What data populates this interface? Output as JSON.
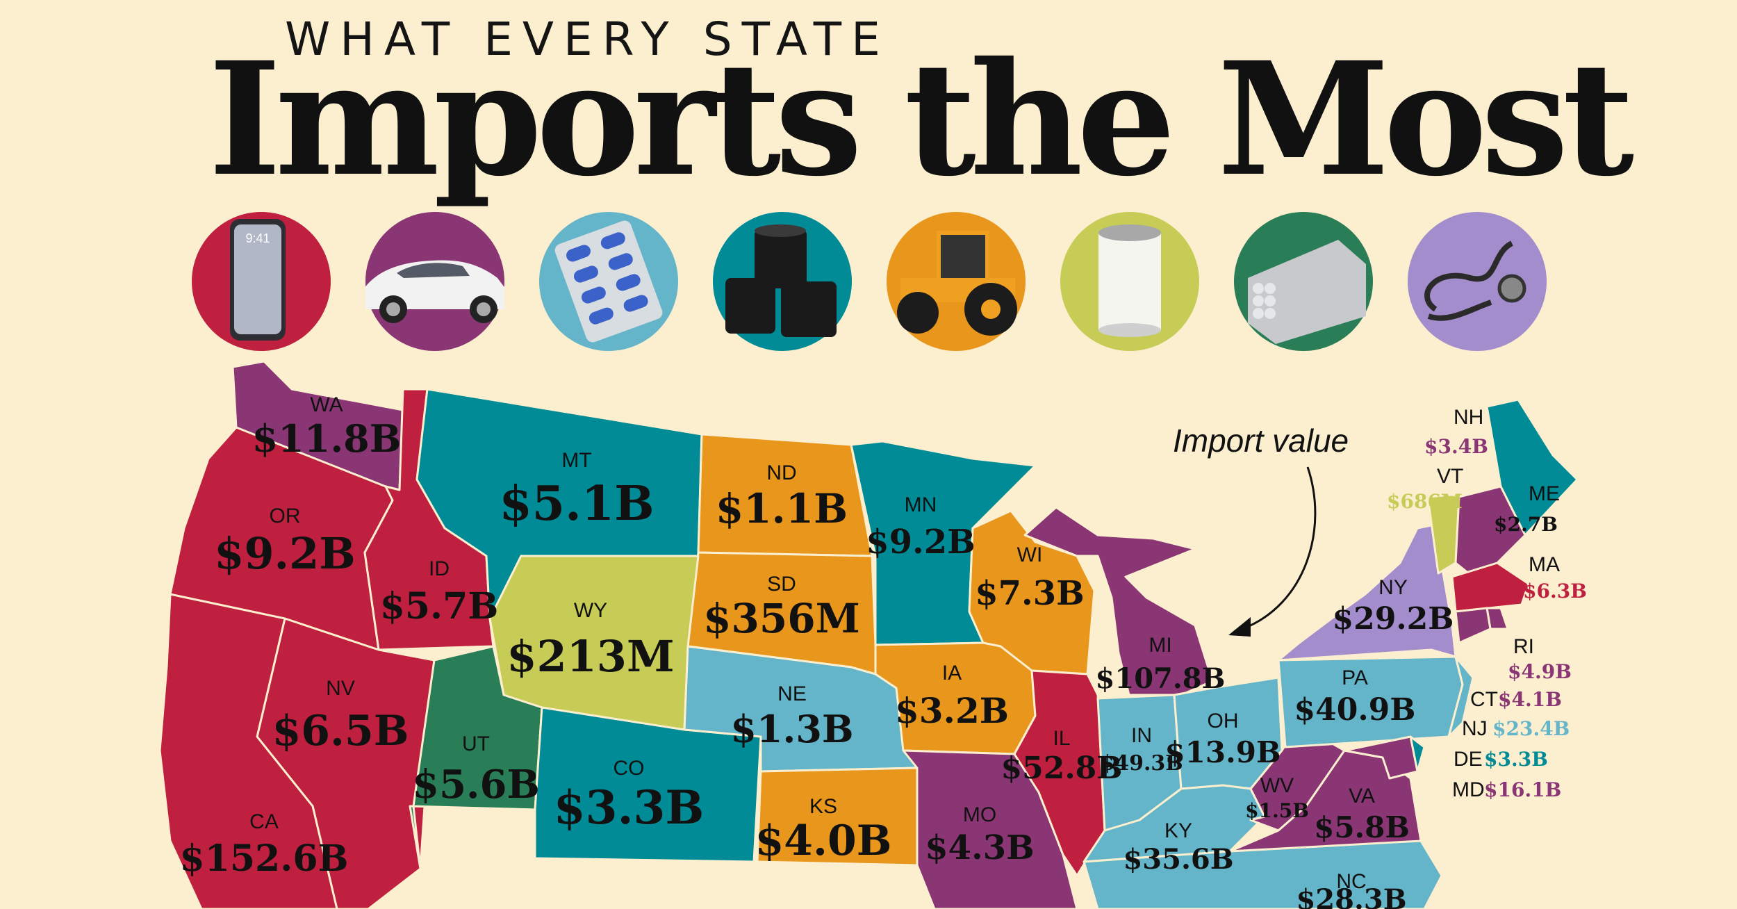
{
  "header": {
    "kicker": "WHAT EVERY STATE",
    "title": "Imports the Most"
  },
  "legend_icons": [
    {
      "name": "smartphone-icon",
      "color": "#c0203f"
    },
    {
      "name": "car-icon",
      "color": "#8a3675"
    },
    {
      "name": "pills-icon",
      "color": "#64b5c9"
    },
    {
      "name": "oil-barrels-icon",
      "color": "#008b96"
    },
    {
      "name": "tractor-icon",
      "color": "#e8961c"
    },
    {
      "name": "can-icon",
      "color": "#c6cc56"
    },
    {
      "name": "metal-bars-icon",
      "color": "#2a7e57"
    },
    {
      "name": "stethoscope-icon",
      "color": "#a48dcc"
    }
  ],
  "colors": {
    "red": "#c0203f",
    "purple": "#8a3675",
    "lightblue": "#64b5c9",
    "teal": "#008b96",
    "orange": "#e8961c",
    "yellowgreen": "#c6cc56",
    "green": "#2a7e57",
    "lavender": "#a48dcc"
  },
  "annotation": "Import value",
  "states": {
    "WA": {
      "abbr": "WA",
      "value": "$11.8B",
      "color": "#8a3675"
    },
    "OR": {
      "abbr": "OR",
      "value": "$9.2B",
      "color": "#c0203f"
    },
    "ID": {
      "abbr": "ID",
      "value": "$5.7B",
      "color": "#c0203f"
    },
    "MT": {
      "abbr": "MT",
      "value": "$5.1B",
      "color": "#008b96"
    },
    "ND": {
      "abbr": "ND",
      "value": "$1.1B",
      "color": "#e8961c"
    },
    "MN": {
      "abbr": "MN",
      "value": "$9.2B",
      "color": "#008b96"
    },
    "WI": {
      "abbr": "WI",
      "value": "$7.3B",
      "color": "#e8961c"
    },
    "SD": {
      "abbr": "SD",
      "value": "$356M",
      "color": "#e8961c"
    },
    "WY": {
      "abbr": "WY",
      "value": "$213M",
      "color": "#c6cc56"
    },
    "NV": {
      "abbr": "NV",
      "value": "$6.5B",
      "color": "#c0203f"
    },
    "UT": {
      "abbr": "UT",
      "value": "$5.6B",
      "color": "#2a7e57"
    },
    "CO": {
      "abbr": "CO",
      "value": "$3.3B",
      "color": "#008b96"
    },
    "NE": {
      "abbr": "NE",
      "value": "$1.3B",
      "color": "#64b5c9"
    },
    "IA": {
      "abbr": "IA",
      "value": "$3.2B",
      "color": "#e8961c"
    },
    "KS": {
      "abbr": "KS",
      "value": "$4.0B",
      "color": "#e8961c"
    },
    "MO": {
      "abbr": "MO",
      "value": "$4.3B",
      "color": "#8a3675"
    },
    "IL": {
      "abbr": "IL",
      "value": "$52.8B",
      "color": "#c0203f"
    },
    "MI": {
      "abbr": "MI",
      "value": "$107.8B",
      "color": "#8a3675"
    },
    "IN": {
      "abbr": "IN",
      "value": "$49.3B",
      "color": "#64b5c9"
    },
    "OH": {
      "abbr": "OH",
      "value": "$13.9B",
      "color": "#64b5c9"
    },
    "KY": {
      "abbr": "KY",
      "value": "$35.6B",
      "color": "#64b5c9"
    },
    "WV": {
      "abbr": "WV",
      "value": "$1.5B",
      "color": "#8a3675"
    },
    "VA": {
      "abbr": "VA",
      "value": "$5.8B",
      "color": "#8a3675"
    },
    "PA": {
      "abbr": "PA",
      "value": "$40.9B",
      "color": "#64b5c9"
    },
    "NY": {
      "abbr": "NY",
      "value": "$29.2B",
      "color": "#a48dcc"
    },
    "CA": {
      "abbr": "CA",
      "value": "$152.6B",
      "color": "#c0203f"
    },
    "NC": {
      "abbr": "NC",
      "value": "$28.3B",
      "color": "#64b5c9"
    },
    "ME": {
      "abbr": "ME",
      "value": "$2.7B",
      "color": "#008b96"
    },
    "VT": {
      "abbr": "VT",
      "value": "$686M",
      "color": "#c6cc56"
    },
    "NH": {
      "abbr": "NH",
      "value": "$3.4B",
      "color": "#8a3675"
    },
    "MA": {
      "abbr": "MA",
      "value": "$6.3B",
      "color": "#c0203f"
    },
    "RI": {
      "abbr": "RI",
      "value": "$4.9B",
      "color": "#8a3675"
    },
    "CT": {
      "abbr": "CT",
      "value": "$4.1B",
      "color": "#8a3675"
    },
    "NJ": {
      "abbr": "NJ",
      "value": "$23.4B",
      "color": "#64b5c9"
    },
    "DE": {
      "abbr": "DE",
      "value": "$3.3B",
      "color": "#008b96"
    },
    "MD": {
      "abbr": "MD",
      "value": "$16.1B",
      "color": "#8a3675"
    }
  }
}
